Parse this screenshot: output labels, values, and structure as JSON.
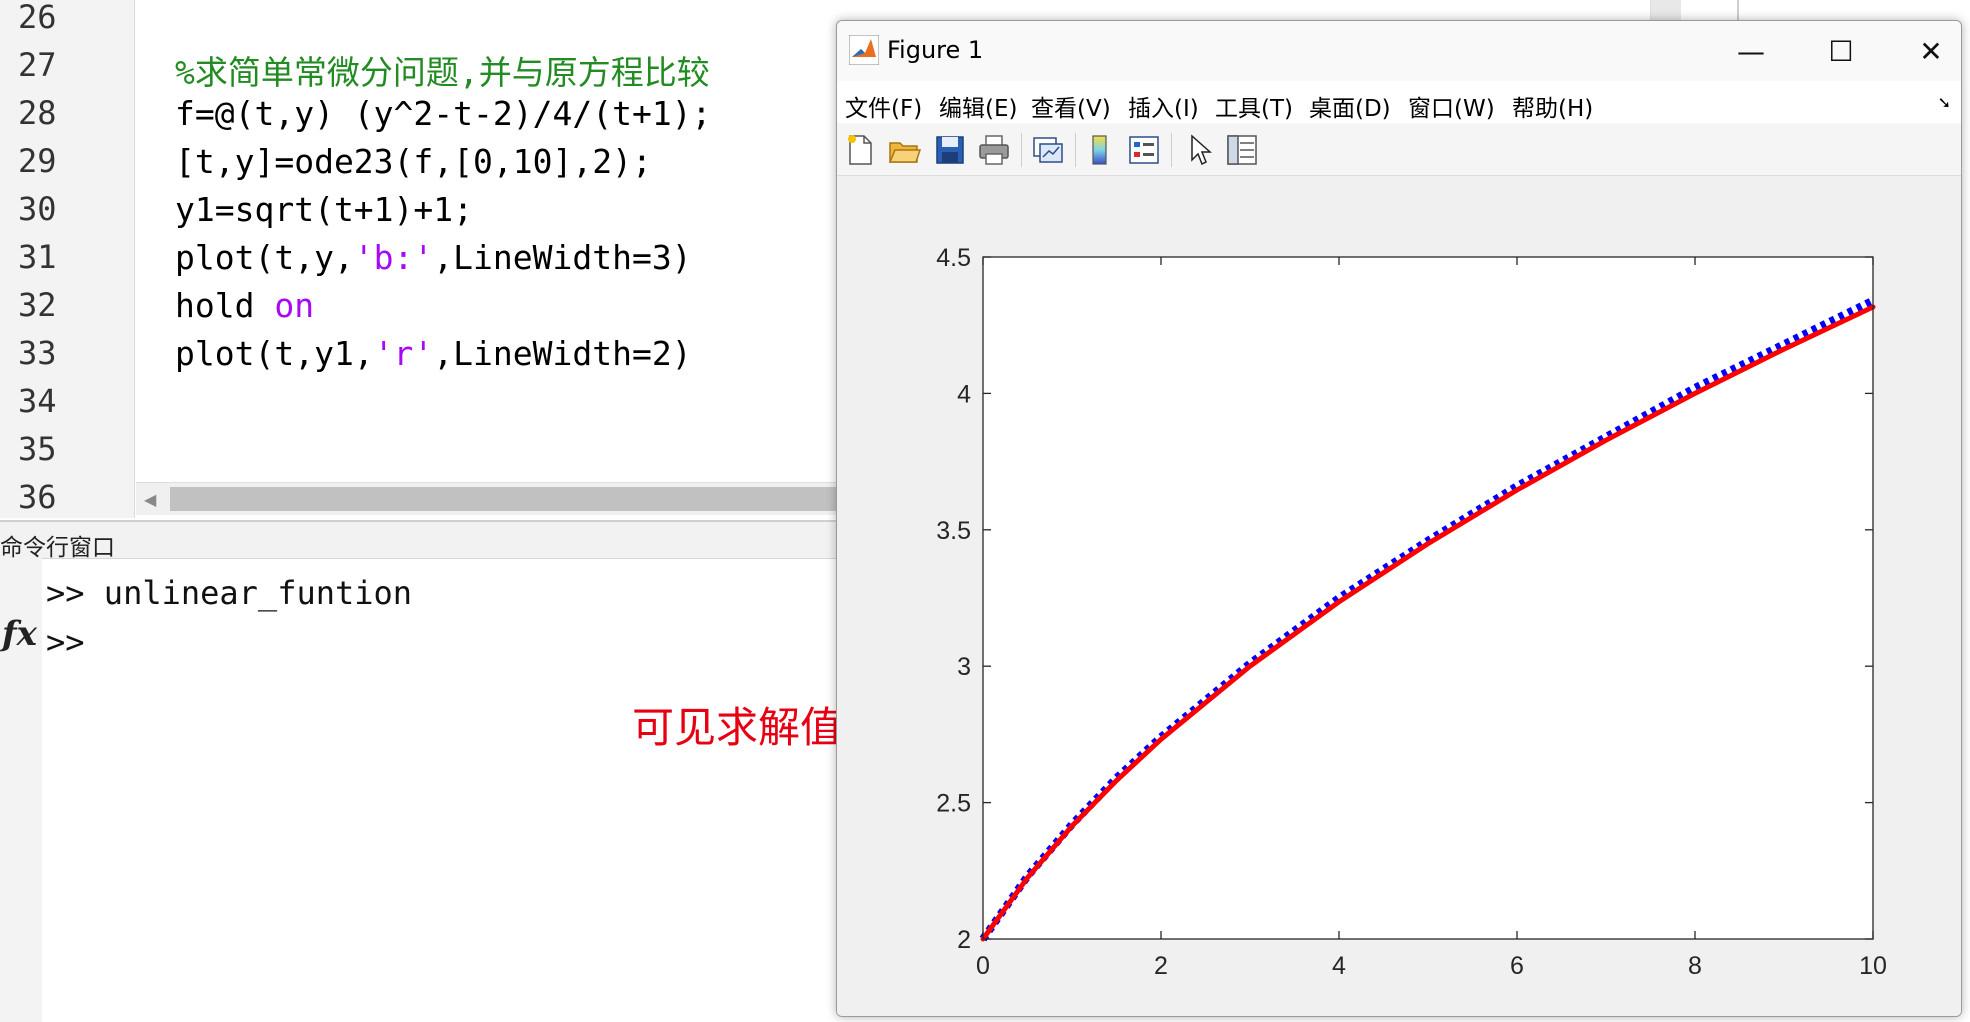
{
  "editor": {
    "line_numbers": [
      "26",
      "27",
      "28",
      "29",
      "30",
      "31",
      "32",
      "33",
      "34",
      "35",
      "36"
    ],
    "code_lines": [
      [],
      [
        {
          "t": "%求简单常微分问题,并与原方程比较",
          "c": "cmt"
        }
      ],
      [
        {
          "t": "f=@(t,y) (y^2-t-2)/4/(t+1);",
          "c": ""
        }
      ],
      [
        {
          "t": "[t,y]=ode23(f,[0,10],2);",
          "c": ""
        }
      ],
      [
        {
          "t": "y1=sqrt(t+1)+1;",
          "c": ""
        }
      ],
      [
        {
          "t": "plot(t,y,",
          "c": ""
        },
        {
          "t": "'b:'",
          "c": "str"
        },
        {
          "t": ",LineWidth=3)",
          "c": ""
        }
      ],
      [
        {
          "t": "hold ",
          "c": ""
        },
        {
          "t": "on",
          "c": "kw"
        }
      ],
      [
        {
          "t": "plot(t,y1,",
          "c": ""
        },
        {
          "t": "'r'",
          "c": "str"
        },
        {
          "t": ",LineWidth=2)",
          "c": ""
        }
      ],
      [],
      [],
      []
    ]
  },
  "command_window": {
    "title": "命令行窗口",
    "lines": [
      ">> unlinear_funtion",
      ">>"
    ],
    "fx_label": "fx"
  },
  "annotation": "可见求解值与原方程相近",
  "figure": {
    "title": "Figure 1",
    "window_buttons": [
      "—",
      "☐",
      "✕"
    ],
    "menu": [
      "文件(F)",
      "编辑(E)",
      "查看(V)",
      "插入(I)",
      "工具(T)",
      "桌面(D)",
      "窗口(W)",
      "帮助(H)"
    ],
    "toolbar_icons": [
      "new-figure-icon",
      "open-file-icon",
      "save-icon",
      "print-icon",
      "link-plot-icon",
      "colorbar-icon",
      "legend-icon",
      "pointer-icon",
      "property-inspector-icon"
    ]
  },
  "chart_data": {
    "type": "line",
    "title": "",
    "xlabel": "",
    "ylabel": "",
    "xlim": [
      0,
      10
    ],
    "ylim": [
      2,
      4.5
    ],
    "xticks": [
      0,
      2,
      4,
      6,
      8,
      10
    ],
    "yticks": [
      2,
      2.5,
      3,
      3.5,
      4,
      4.5
    ],
    "grid": false,
    "series": [
      {
        "color": "#0000ff",
        "style": "dotted",
        "x": [
          0,
          0.5,
          1,
          1.5,
          2,
          3,
          4,
          5,
          6,
          7,
          8,
          9,
          10
        ],
        "y": [
          2.0,
          2.23,
          2.42,
          2.59,
          2.74,
          3.01,
          3.25,
          3.46,
          3.66,
          3.84,
          4.02,
          4.18,
          4.34
        ]
      },
      {
        "color": "#ff0000",
        "style": "solid",
        "x": [
          0,
          0.5,
          1,
          1.5,
          2,
          3,
          4,
          5,
          6,
          7,
          8,
          9,
          10
        ],
        "y": [
          2.0,
          2.2247,
          2.4142,
          2.5811,
          2.7321,
          3.0,
          3.2361,
          3.4495,
          3.6458,
          3.8284,
          4.0,
          4.1623,
          4.3166
        ]
      }
    ]
  }
}
